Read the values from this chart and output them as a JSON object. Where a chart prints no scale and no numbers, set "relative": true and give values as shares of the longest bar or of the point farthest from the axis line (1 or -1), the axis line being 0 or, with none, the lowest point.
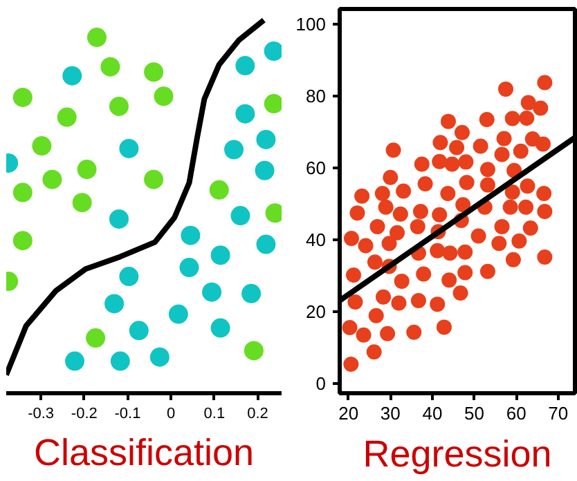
{
  "chart_data": [
    {
      "type": "scatter",
      "title": "Classification",
      "relative": true,
      "xlim": [
        -0.38,
        0.255
      ],
      "xticks": [
        -0.3,
        -0.2,
        -0.1,
        0,
        0.1,
        0.2
      ],
      "series": [
        {
          "color": "#66dd22",
          "marker": "circle",
          "x": [
            -0.171,
            -0.14,
            -0.04,
            -0.342,
            -0.017,
            -0.12,
            -0.24,
            -0.298,
            -0.194,
            -0.274,
            -0.342,
            -0.04,
            -0.205,
            0.111,
            0.24,
            0.237,
            -0.342,
            -0.375,
            -0.174,
            0.191
          ],
          "values": [
            0.954,
            0.875,
            0.861,
            0.793,
            0.796,
            0.769,
            0.74,
            0.663,
            0.6,
            0.573,
            0.538,
            0.573,
            0.511,
            0.545,
            0.483,
            0.776,
            0.409,
            0.3,
            0.148,
            0.114
          ]
        },
        {
          "color": "#11c4c4",
          "marker": "circle",
          "x": [
            -0.228,
            0.171,
            0.237,
            0.171,
            0.219,
            0.145,
            0.216,
            -0.097,
            -0.375,
            -0.12,
            0.16,
            0.045,
            0.219,
            0.114,
            0.042,
            -0.097,
            -0.131,
            0.094,
            0.185,
            0.017,
            -0.074,
            0.114,
            -0.222,
            -0.117,
            -0.026
          ],
          "values": [
            0.851,
            0.878,
            0.917,
            0.749,
            0.68,
            0.653,
            0.597,
            0.656,
            0.617,
            0.467,
            0.476,
            0.423,
            0.399,
            0.37,
            0.337,
            0.313,
            0.24,
            0.271,
            0.267,
            0.212,
            0.168,
            0.175,
            0.086,
            0.086,
            0.097
          ]
        },
        {
          "type": "line",
          "color": "#000000",
          "x": [
            -0.38,
            -0.334,
            -0.266,
            -0.197,
            -0.117,
            -0.037,
            0.008,
            0.042,
            0.06,
            0.077,
            0.111,
            0.157,
            0.214
          ],
          "values": [
            0.049,
            0.181,
            0.274,
            0.333,
            0.366,
            0.405,
            0.471,
            0.564,
            0.683,
            0.789,
            0.881,
            0.947,
            1.0
          ]
        }
      ]
    },
    {
      "type": "scatter",
      "title": "Regression",
      "xlim": [
        17.9,
        74
      ],
      "xticks": [
        20,
        30,
        40,
        50,
        60,
        70
      ],
      "ylim": [
        -2.7,
        104.3
      ],
      "yticks": [
        0,
        20,
        40,
        60,
        80,
        100
      ],
      "series": [
        {
          "color": "#e8401c",
          "marker": "circle",
          "x": [
            20.6,
            20.3,
            20.7,
            21.2,
            21.6,
            22.1,
            23.2,
            23.6,
            24.1,
            26.1,
            26.3,
            26.6,
            26.9,
            28.1,
            28.3,
            28.9,
            29.3,
            29.7,
            29.7,
            30.0,
            30.7,
            31.6,
            32.0,
            32.4,
            32.7,
            33.1,
            36.5,
            36.7,
            36.7,
            35.6,
            37.2,
            37.5,
            38.3,
            37.9,
            41.2,
            41.2,
            41.4,
            41.7,
            41.7,
            41.9,
            42.8,
            43.7,
            43.8,
            44.0,
            44.2,
            44.7,
            45.8,
            46.7,
            46.9,
            47.1,
            47.3,
            47.8,
            47.8,
            48.0,
            48.2,
            51.0,
            51.5,
            52.5,
            53.0,
            53.2,
            53.2,
            53.2,
            55.9,
            56.6,
            56.6,
            57.1,
            57.5,
            59.1,
            59.1,
            59.3,
            59.5,
            58.6,
            60.7,
            61.1,
            62.3,
            62.5,
            62.7,
            62.9,
            63.4,
            63.9,
            65.8,
            66.4,
            66.6,
            66.8,
            66.8,
            66.8
          ],
          "values": [
            5.4,
            15.6,
            40.4,
            30.2,
            22.7,
            47.5,
            52.2,
            13.5,
            38.4,
            8.8,
            33.8,
            18.9,
            43.7,
            52.9,
            24.1,
            49.1,
            13.9,
            39.0,
            32.6,
            57.4,
            65.0,
            42.0,
            22.4,
            47.2,
            28.5,
            53.6,
            43.7,
            36.3,
            23.1,
            14.3,
            47.9,
            61.1,
            55.6,
            30.5,
            37.0,
            22.1,
            42.3,
            47.0,
            61.8,
            67.1,
            15.7,
            52.9,
            73.0,
            28.8,
            36.3,
            61.1,
            65.7,
            25.2,
            45.4,
            69.9,
            49.8,
            36.6,
            30.9,
            61.7,
            56.0,
            41.1,
            66.1,
            49.1,
            73.5,
            59.6,
            55.3,
            31.2,
            39.0,
            63.8,
            43.7,
            68.2,
            82.0,
            53.3,
            73.8,
            34.5,
            59.3,
            49.1,
            39.7,
            64.7,
            49.1,
            73.9,
            55.0,
            78.2,
            43.3,
            68.1,
            76.7,
            66.7,
            52.9,
            47.9,
            35.2,
            83.8
          ]
        },
        {
          "type": "line",
          "color": "#000000",
          "x": [
            17.9,
            74
          ],
          "values": [
            23.1,
            68.5
          ]
        }
      ]
    }
  ]
}
